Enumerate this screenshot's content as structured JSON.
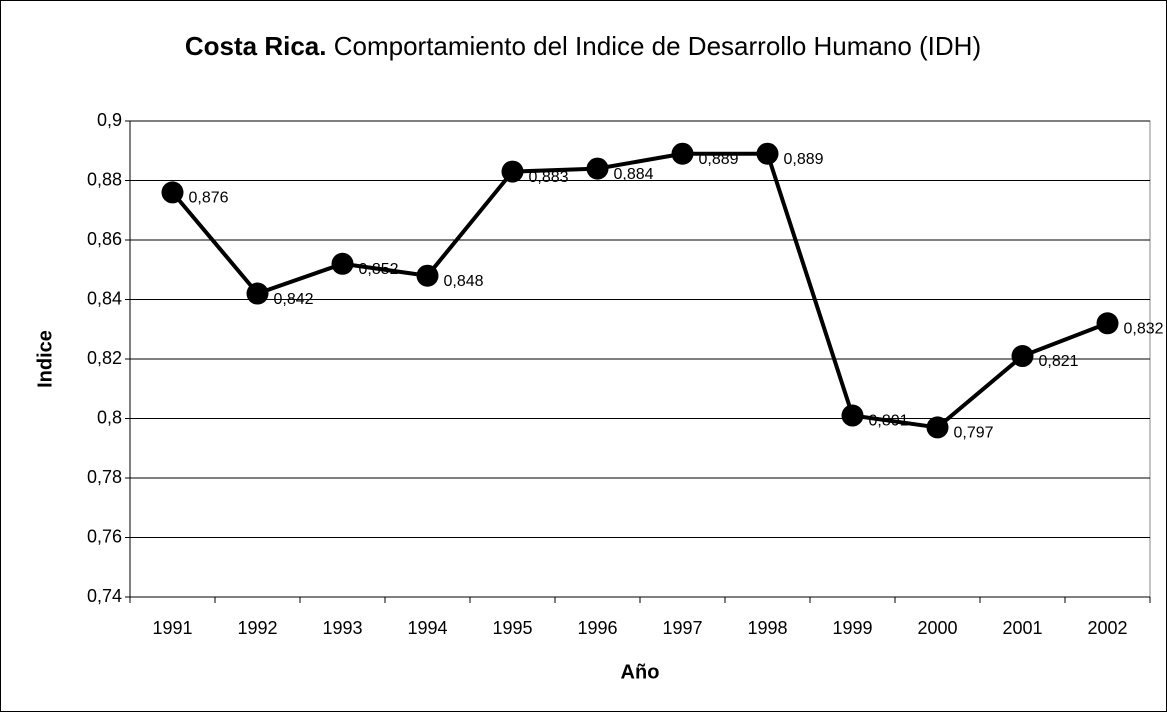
{
  "chart_data": {
    "type": "line",
    "title_bold": "Costa Rica.",
    "title": "Comportamiento del Indice de Desarrollo Humano (IDH)",
    "x_label": "Año",
    "y_label": "Indice",
    "categories": [
      "1991",
      "1992",
      "1993",
      "1994",
      "1995",
      "1996",
      "1997",
      "1998",
      "1999",
      "2000",
      "2001",
      "2002"
    ],
    "series": [
      {
        "color": "#000000",
        "values": [
          0.876,
          0.842,
          0.852,
          0.848,
          0.883,
          0.884,
          0.889,
          0.889,
          0.801,
          0.797,
          0.821,
          0.832
        ],
        "value_labels": [
          "0,876",
          "0,842",
          "0,852",
          "0,848",
          "0,883",
          "0,884",
          "0,889",
          "0,889",
          "0,801",
          "0,797",
          "0,821",
          "0,832"
        ]
      }
    ],
    "ylim": [
      0.74,
      0.9
    ],
    "yticks": [
      {
        "value": 0.74,
        "label": "0,74"
      },
      {
        "value": 0.76,
        "label": "0,76"
      },
      {
        "value": 0.78,
        "label": "0,78"
      },
      {
        "value": 0.8,
        "label": "0,8"
      },
      {
        "value": 0.82,
        "label": "0,82"
      },
      {
        "value": 0.84,
        "label": "0,84"
      },
      {
        "value": 0.86,
        "label": "0,86"
      },
      {
        "value": 0.88,
        "label": "0,88"
      },
      {
        "value": 0.9,
        "label": "0,9"
      }
    ],
    "grid": true
  }
}
